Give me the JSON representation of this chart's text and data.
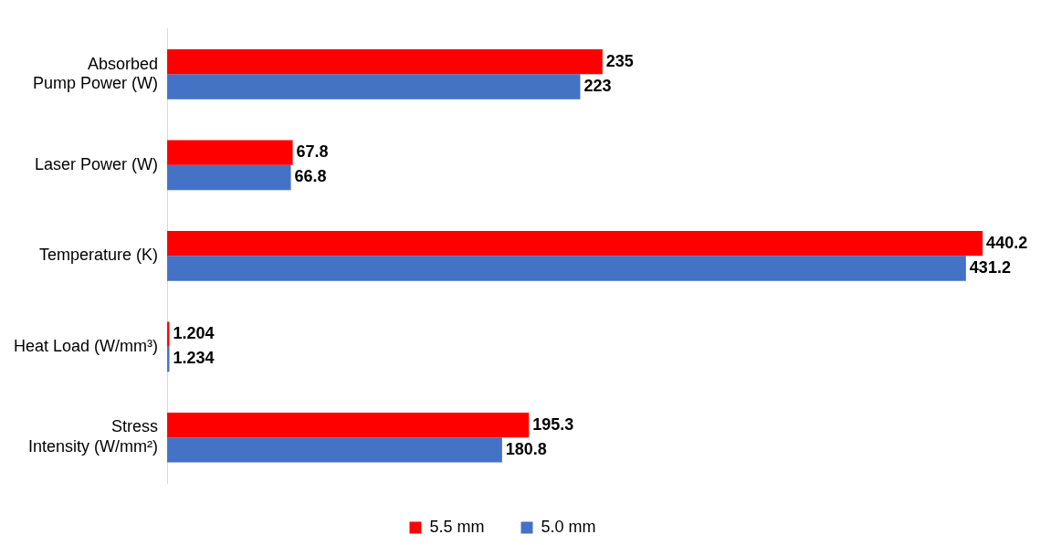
{
  "chart_data": {
    "type": "bar",
    "orientation": "horizontal",
    "categories": [
      "Absorbed\nPump Power (W)",
      "Laser Power (W)",
      "Temperature (K)",
      "Heat Load (W/mm³)",
      "Stress\nIntensity (W/mm²)"
    ],
    "series": [
      {
        "name": "5.5 mm",
        "color": "#ff0000",
        "values": [
          235,
          67.8,
          440.2,
          1.204,
          195.3
        ]
      },
      {
        "name": "5.0 mm",
        "color": "#4472c4",
        "values": [
          223,
          66.8,
          431.2,
          1.234,
          180.8
        ]
      }
    ],
    "data_labels": true,
    "tick_labels": "y",
    "grid": false,
    "legend": "bottom"
  }
}
